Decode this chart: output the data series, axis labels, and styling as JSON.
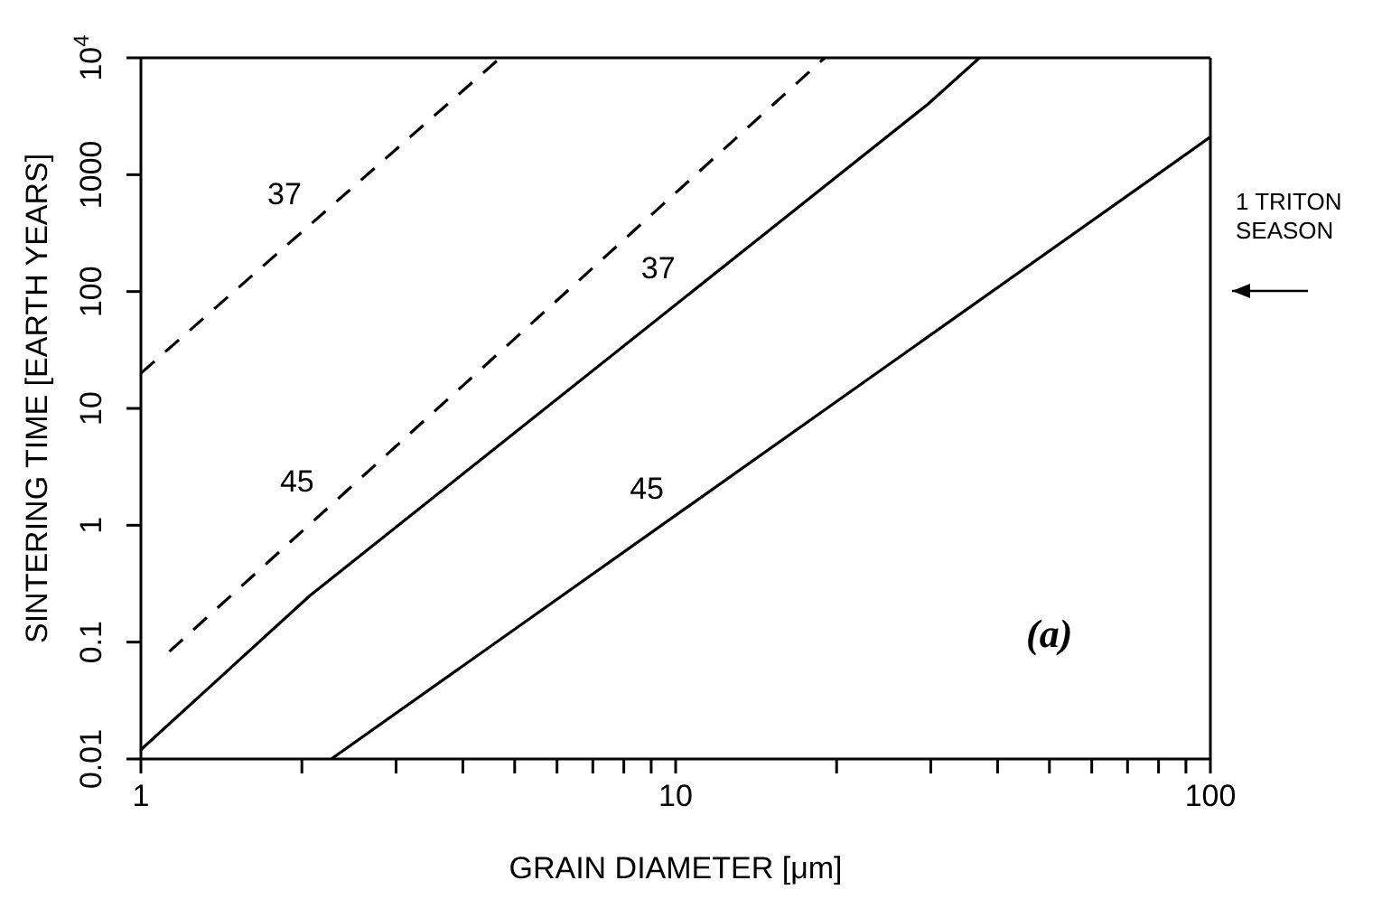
{
  "chart_data": {
    "type": "line",
    "xlabel": "GRAIN DIAMETER [μm]",
    "ylabel": "SINTERING TIME [EARTH YEARS]",
    "log": "xy",
    "xlim": [
      1,
      100
    ],
    "ylim": [
      0.01,
      10000
    ],
    "xticks": [
      1,
      {
        "value": 2,
        "label": null
      },
      {
        "value": 3,
        "label": null
      },
      {
        "value": 4,
        "label": null
      },
      {
        "value": 5,
        "label": null
      },
      {
        "value": 6,
        "label": null
      },
      {
        "value": 7,
        "label": null
      },
      {
        "value": 8,
        "label": null
      },
      {
        "value": 9,
        "label": null
      },
      10,
      {
        "value": 20,
        "label": null
      },
      {
        "value": 30,
        "label": null
      },
      {
        "value": 40,
        "label": null
      },
      {
        "value": 50,
        "label": null
      },
      {
        "value": 60,
        "label": null
      },
      {
        "value": 70,
        "label": null
      },
      {
        "value": 80,
        "label": null
      },
      {
        "value": 90,
        "label": null
      },
      100
    ],
    "yticks": [
      0.01,
      0.1,
      1,
      10,
      100,
      1000,
      {
        "value": 10000,
        "label": "10$^{4}$"
      }
    ],
    "series": [
      {
        "name": "37",
        "color": "#000000",
        "line_style": "dashed",
        "x": [
          1,
          4.7
        ],
        "values": [
          20,
          10000
        ]
      },
      {
        "name": "45",
        "color": "#000000",
        "line_style": "dashed",
        "x": [
          1.13,
          19
        ],
        "values": [
          0.083,
          10000
        ]
      },
      {
        "name": "37",
        "color": "#000000",
        "line_style": "solid",
        "x": [
          1,
          2.07,
          29.6,
          37
        ],
        "values": [
          0.012,
          0.25,
          4000,
          10000
        ]
      },
      {
        "name": "45",
        "color": "#000000",
        "line_style": "solid",
        "x": [
          2.27,
          100
        ],
        "values": [
          0.01,
          2100
        ]
      }
    ],
    "annotations": [
      "1 TRITON SEASON",
      "(a)"
    ]
  }
}
